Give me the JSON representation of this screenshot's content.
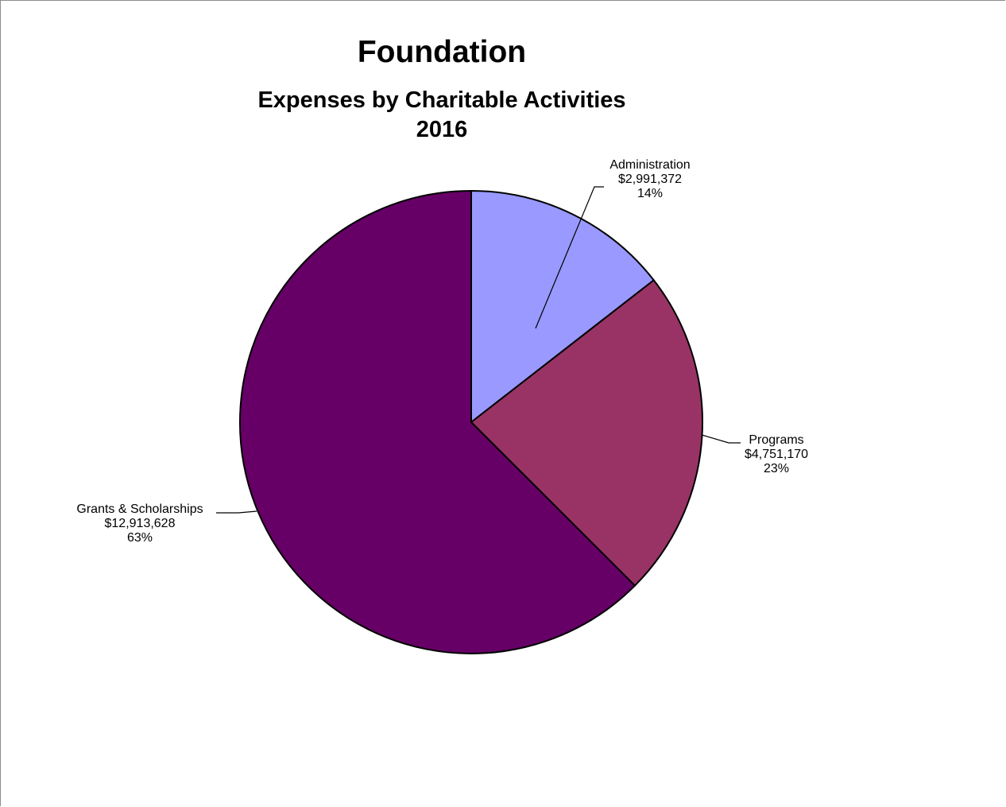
{
  "chart_data": {
    "type": "pie",
    "title": "Foundation",
    "subtitle_lines": [
      "Expenses by Charitable Activities",
      "2016"
    ],
    "slices": [
      {
        "label": "Administration",
        "amount": "$2,991,372",
        "percent": "14%",
        "value": 2991372,
        "color": "#9999ff"
      },
      {
        "label": "Programs",
        "amount": "$4,751,170",
        "percent": "23%",
        "value": 4751170,
        "color": "#993366"
      },
      {
        "label": "Grants & Scholarships",
        "amount": "$12,913,628",
        "percent": "63%",
        "value": 12913628,
        "color": "#660066"
      }
    ],
    "start_angle": "12 o'clock",
    "direction": "clockwise",
    "legend": "none",
    "data_labels": "outside with leader lines"
  }
}
